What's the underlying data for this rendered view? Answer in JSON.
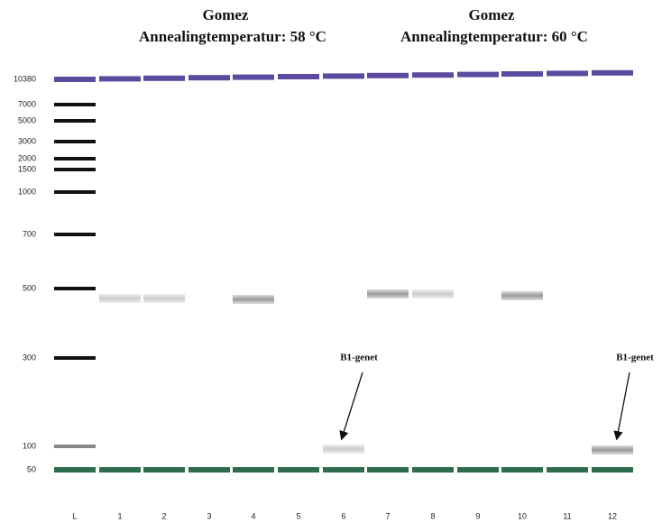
{
  "titles": [
    {
      "name": "Gomez",
      "subtitle": "Annealingtemperatur: 58 °C"
    },
    {
      "name": "Gomez",
      "subtitle": "Annealingtemperatur: 60 °C"
    }
  ],
  "ladder_labels": [
    "10380",
    "7000",
    "5000",
    "3000",
    "2000",
    "1500",
    "1000",
    "700",
    "500",
    "300",
    "100",
    "50"
  ],
  "lane_labels": [
    "L",
    "1",
    "2",
    "3",
    "4",
    "5",
    "6",
    "7",
    "8",
    "9",
    "10",
    "11",
    "12"
  ],
  "annotations": [
    "B1-genet",
    "B1-genet"
  ]
}
